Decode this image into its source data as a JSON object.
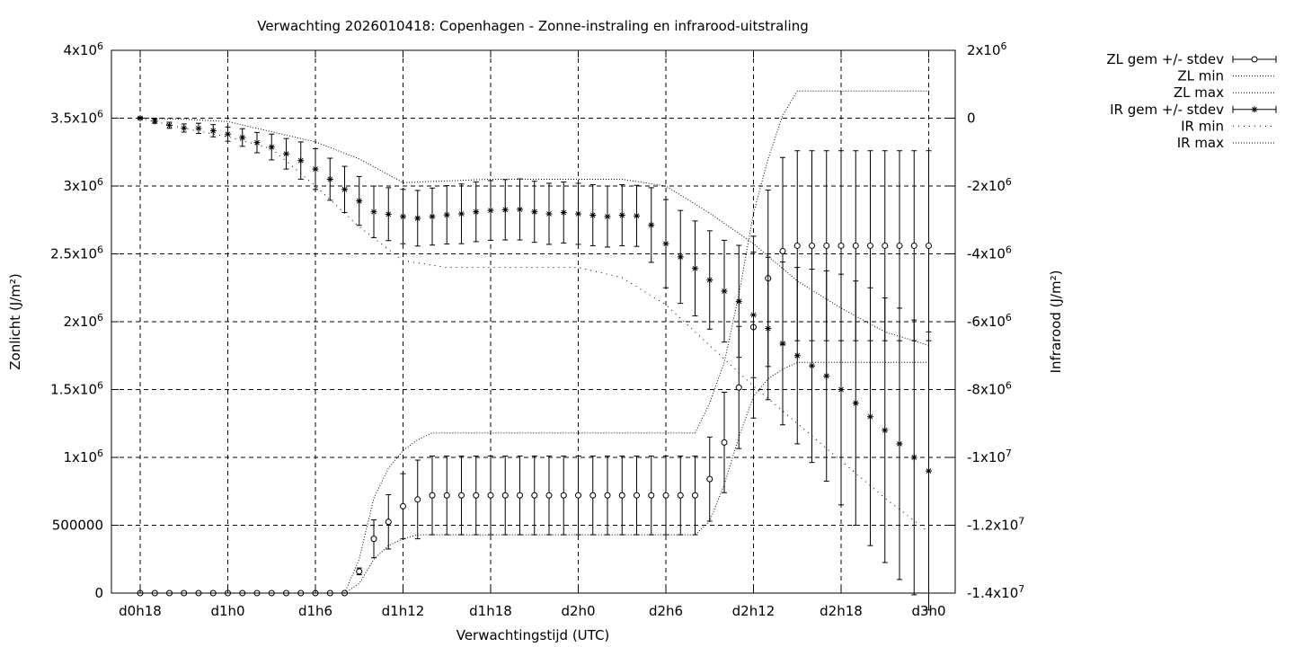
{
  "chart_data": {
    "type": "line",
    "title": "Verwachting 2026010418: Copenhagen - Zonne-instraling en infrarood-uitstraling",
    "xlabel": "Verwachtingstijd (UTC)",
    "ylabel": "Zonlicht (J/m²)",
    "y2label": "Infrarood (J/m²)",
    "xlim": [
      0,
      57
    ],
    "ylim": [
      0,
      4000000
    ],
    "y2lim": [
      -14000000,
      2000000
    ],
    "grid": true,
    "legend_position": "top-right, outside plot",
    "x_ticks": [
      {
        "x": 0,
        "label": "d0h18"
      },
      {
        "x": 6,
        "label": "d1h0"
      },
      {
        "x": 12,
        "label": "d1h6"
      },
      {
        "x": 18,
        "label": "d1h12"
      },
      {
        "x": 24,
        "label": "d1h18"
      },
      {
        "x": 30,
        "label": "d2h0"
      },
      {
        "x": 36,
        "label": "d2h6"
      },
      {
        "x": 42,
        "label": "d2h12"
      },
      {
        "x": 48,
        "label": "d2h18"
      },
      {
        "x": 54,
        "label": "d3h0"
      }
    ],
    "y_ticks": [
      {
        "v": 0,
        "m": "0",
        "e": ""
      },
      {
        "v": 500000,
        "m": "500000",
        "e": ""
      },
      {
        "v": 1000000,
        "m": "1x10",
        "e": "6"
      },
      {
        "v": 1500000,
        "m": "1.5x10",
        "e": "6"
      },
      {
        "v": 2000000,
        "m": "2x10",
        "e": "6"
      },
      {
        "v": 2500000,
        "m": "2.5x10",
        "e": "6"
      },
      {
        "v": 3000000,
        "m": "3x10",
        "e": "6"
      },
      {
        "v": 3500000,
        "m": "3.5x10",
        "e": "6"
      },
      {
        "v": 4000000,
        "m": "4x10",
        "e": "6"
      }
    ],
    "y2_ticks": [
      {
        "v": -14000000,
        "m": "-1.4x10",
        "e": "7"
      },
      {
        "v": -12000000,
        "m": "-1.2x10",
        "e": "7"
      },
      {
        "v": -10000000,
        "m": "-1x10",
        "e": "7"
      },
      {
        "v": -8000000,
        "m": "-8x10",
        "e": "6"
      },
      {
        "v": -6000000,
        "m": "-6x10",
        "e": "6"
      },
      {
        "v": -4000000,
        "m": "-4x10",
        "e": "6"
      },
      {
        "v": -2000000,
        "m": "-2x10",
        "e": "6"
      },
      {
        "v": 0,
        "m": "0",
        "e": ""
      },
      {
        "v": 2000000,
        "m": "2x10",
        "e": "6"
      }
    ],
    "legend": [
      {
        "label": "ZL gem +/- stdev",
        "style": "errorbar-circle"
      },
      {
        "label": "ZL min",
        "style": "dotted"
      },
      {
        "label": "ZL max",
        "style": "dotted"
      },
      {
        "label": "IR gem +/- stdev",
        "style": "errorbar-star"
      },
      {
        "label": "IR min",
        "style": "dotted-sparse"
      },
      {
        "label": "IR max",
        "style": "dotted"
      }
    ],
    "series": [
      {
        "name": "ZL gem +/- stdev",
        "axis": "y1",
        "marker": "circle",
        "x": [
          0,
          1,
          2,
          3,
          4,
          5,
          6,
          7,
          8,
          9,
          10,
          11,
          12,
          13,
          14,
          15,
          16,
          17,
          18,
          19,
          20,
          21,
          22,
          23,
          24,
          25,
          26,
          27,
          28,
          29,
          30,
          31,
          32,
          33,
          34,
          35,
          36,
          37,
          38,
          39,
          40,
          41,
          42,
          43,
          44,
          45,
          46,
          47,
          48,
          49,
          50,
          51,
          52,
          53,
          54
        ],
        "y": [
          0,
          0,
          0,
          0,
          0,
          0,
          0,
          0,
          0,
          0,
          0,
          0,
          0,
          0,
          0,
          160000,
          400000,
          525000,
          640000,
          690000,
          720000,
          720000,
          720000,
          720000,
          720000,
          720000,
          720000,
          720000,
          720000,
          720000,
          720000,
          720000,
          720000,
          720000,
          720000,
          720000,
          720000,
          720000,
          720000,
          840000,
          1110000,
          1515000,
          1960000,
          2320000,
          2520000,
          2560000,
          2560000,
          2560000,
          2560000,
          2560000,
          2560000,
          2560000,
          2560000,
          2560000,
          2560000
        ],
        "err": [
          0,
          0,
          0,
          0,
          0,
          0,
          0,
          0,
          0,
          0,
          0,
          0,
          0,
          0,
          0,
          25000,
          140000,
          200000,
          240000,
          290000,
          290000,
          290000,
          290000,
          290000,
          290000,
          290000,
          290000,
          290000,
          290000,
          290000,
          290000,
          290000,
          290000,
          290000,
          290000,
          290000,
          290000,
          290000,
          290000,
          310000,
          370000,
          450000,
          670000,
          650000,
          690000,
          700000,
          700000,
          700000,
          700000,
          700000,
          700000,
          700000,
          700000,
          700000,
          700000
        ]
      },
      {
        "name": "ZL min",
        "axis": "y1",
        "style": "dotted",
        "x": [
          14,
          15,
          16,
          17,
          18,
          19,
          20,
          21,
          22,
          23,
          24,
          25,
          26,
          27,
          28,
          29,
          30,
          31,
          32,
          33,
          34,
          35,
          36,
          37,
          38,
          39,
          40,
          41,
          42,
          43,
          44,
          45,
          46,
          47,
          48,
          49,
          50,
          51,
          52,
          53,
          54
        ],
        "y": [
          0,
          70000,
          250000,
          350000,
          400000,
          430000,
          430000,
          430000,
          430000,
          430000,
          430000,
          430000,
          430000,
          430000,
          430000,
          430000,
          430000,
          430000,
          430000,
          430000,
          430000,
          430000,
          430000,
          430000,
          430000,
          530000,
          800000,
          1150000,
          1450000,
          1580000,
          1650000,
          1700000,
          1700000,
          1700000,
          1700000,
          1700000,
          1700000,
          1700000,
          1700000,
          1700000,
          1700000
        ]
      },
      {
        "name": "ZL max",
        "axis": "y1",
        "style": "dotted",
        "x": [
          14,
          15,
          16,
          17,
          18,
          19,
          20,
          21,
          22,
          23,
          24,
          25,
          26,
          27,
          28,
          29,
          30,
          31,
          32,
          33,
          34,
          35,
          36,
          37,
          38,
          39,
          40,
          41,
          42,
          43,
          44,
          45,
          46,
          47,
          48,
          49,
          50,
          51,
          52,
          53,
          54
        ],
        "y": [
          0,
          250000,
          700000,
          920000,
          1050000,
          1130000,
          1180000,
          1180000,
          1180000,
          1180000,
          1180000,
          1180000,
          1180000,
          1180000,
          1180000,
          1180000,
          1180000,
          1180000,
          1180000,
          1180000,
          1180000,
          1180000,
          1180000,
          1180000,
          1180000,
          1400000,
          1700000,
          2200000,
          2800000,
          3200000,
          3520000,
          3700000,
          3700000,
          3700000,
          3700000,
          3700000,
          3700000,
          3700000,
          3700000,
          3700000,
          3700000
        ]
      },
      {
        "name": "IR gem +/- stdev",
        "axis": "y2",
        "marker": "star",
        "x": [
          0,
          1,
          2,
          3,
          4,
          5,
          6,
          7,
          8,
          9,
          10,
          11,
          12,
          13,
          14,
          15,
          16,
          17,
          18,
          19,
          20,
          21,
          22,
          23,
          24,
          25,
          26,
          27,
          28,
          29,
          30,
          31,
          32,
          33,
          34,
          35,
          36,
          37,
          38,
          39,
          40,
          41,
          42,
          43,
          44,
          45,
          46,
          47,
          48,
          49,
          50,
          51,
          52,
          53,
          54
        ],
        "y": [
          0,
          -90000,
          -210000,
          -290000,
          -300000,
          -370000,
          -470000,
          -570000,
          -720000,
          -850000,
          -1050000,
          -1250000,
          -1500000,
          -1800000,
          -2100000,
          -2440000,
          -2760000,
          -2830000,
          -2900000,
          -2950000,
          -2900000,
          -2850000,
          -2820000,
          -2760000,
          -2720000,
          -2700000,
          -2690000,
          -2760000,
          -2820000,
          -2780000,
          -2820000,
          -2860000,
          -2900000,
          -2860000,
          -2880000,
          -3150000,
          -3700000,
          -4090000,
          -4430000,
          -4770000,
          -5100000,
          -5400000,
          -5800000,
          -6200000,
          -6640000,
          -7000000,
          -7300000,
          -7600000,
          -8000000,
          -8400000,
          -8800000,
          -9200000,
          -9600000,
          -10000000,
          -10400000
        ],
        "err": [
          30000,
          60000,
          90000,
          120000,
          150000,
          180000,
          210000,
          260000,
          300000,
          380000,
          450000,
          550000,
          600000,
          620000,
          680000,
          720000,
          760000,
          780000,
          800000,
          820000,
          840000,
          860000,
          880000,
          880000,
          880000,
          890000,
          900000,
          900000,
          900000,
          900000,
          900000,
          900000,
          900000,
          900000,
          900000,
          1100000,
          1300000,
          1370000,
          1400000,
          1450000,
          1500000,
          1650000,
          1850000,
          2100000,
          2400000,
          2600000,
          2850000,
          3100000,
          3400000,
          3600000,
          3800000,
          3900000,
          4000000,
          4050000,
          4100000
        ]
      },
      {
        "name": "IR min",
        "axis": "y2",
        "style": "dotted-sparse",
        "x": [
          0,
          3,
          6,
          9,
          12,
          15,
          18,
          21,
          24,
          27,
          30,
          33,
          36,
          39,
          42,
          45,
          48,
          51,
          54
        ],
        "y": [
          0,
          -300000,
          -550000,
          -900000,
          -2000000,
          -3200000,
          -4200000,
          -4400000,
          -4400000,
          -4400000,
          -4400000,
          -4700000,
          -5500000,
          -6700000,
          -7900000,
          -9000000,
          -10100000,
          -11200000,
          -12200000
        ]
      },
      {
        "name": "IR max",
        "axis": "y2",
        "style": "dotted",
        "x": [
          0,
          3,
          6,
          9,
          12,
          15,
          18,
          21,
          24,
          27,
          30,
          33,
          36,
          39,
          42,
          45,
          48,
          51,
          54
        ],
        "y": [
          0,
          -30000,
          -100000,
          -400000,
          -700000,
          -1200000,
          -1900000,
          -1850000,
          -1800000,
          -1800000,
          -1800000,
          -1800000,
          -2000000,
          -2800000,
          -3700000,
          -4800000,
          -5600000,
          -6300000,
          -6700000
        ]
      }
    ]
  }
}
